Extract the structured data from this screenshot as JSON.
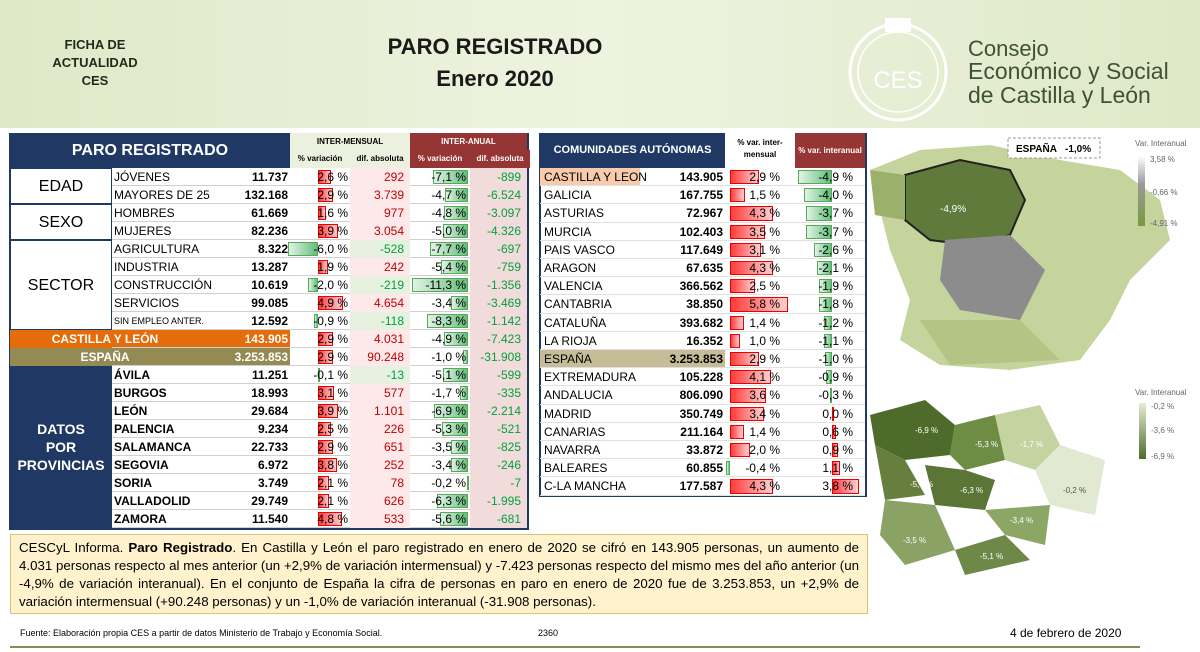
{
  "header": {
    "badge": [
      "FICHA DE",
      "ACTUALIDAD",
      "CES"
    ],
    "title": "PARO REGISTRADO",
    "subtitle": "Enero 2020",
    "logo_mark": "CES",
    "logo_lines": [
      "Consejo",
      "Económico y Social",
      "de Castilla y León"
    ]
  },
  "main_table": {
    "title": "PARO REGISTRADO",
    "groups": [
      "INTER-MENSUAL",
      "INTER-ANUAL"
    ],
    "columns": [
      "% variación",
      "dif. absoluta",
      "% variación",
      "dif. absoluta"
    ],
    "sections": [
      {
        "label": "EDAD",
        "rows": [
          [
            "JÓVENES",
            "11.737",
            "2,6 %",
            "292",
            "-7,1 %",
            "-899"
          ],
          [
            "MAYORES DE 25",
            "132.168",
            "2,9 %",
            "3.739",
            "-4,7 %",
            "-6.524"
          ]
        ]
      },
      {
        "label": "SEXO",
        "rows": [
          [
            "HOMBRES",
            "61.669",
            "1,6 %",
            "977",
            "-4,8 %",
            "-3.097"
          ],
          [
            "MUJERES",
            "82.236",
            "3,9 %",
            "3.054",
            "-5,0 %",
            "-4.326"
          ]
        ]
      },
      {
        "label": "SECTOR",
        "rows": [
          [
            "AGRICULTURA",
            "8.322",
            "-6,0 %",
            "-528",
            "-7,7 %",
            "-697"
          ],
          [
            "INDUSTRIA",
            "13.287",
            "1,9 %",
            "242",
            "-5,4 %",
            "-759"
          ],
          [
            "CONSTRUCCIÓN",
            "10.619",
            "-2,0 %",
            "-219",
            "-11,3 %",
            "-1.356"
          ],
          [
            "SERVICIOS",
            "99.085",
            "4,9 %",
            "4.654",
            "-3,4 %",
            "-3.469"
          ],
          [
            "SIN EMPLEO ANTER.",
            "12.592",
            "-0,9 %",
            "-118",
            "-8,3 %",
            "-1.142"
          ]
        ]
      }
    ],
    "totals": [
      [
        "CASTILLA Y LEÓN",
        "143.905",
        "2,9 %",
        "4.031",
        "-4,9 %",
        "-7.423"
      ],
      [
        "ESPAÑA",
        "3.253.853",
        "2,9 %",
        "90.248",
        "-1,0 %",
        "-31.908"
      ]
    ],
    "provinces": {
      "label": [
        "DATOS",
        "POR",
        "PROVINCIAS"
      ],
      "rows": [
        [
          "ÁVILA",
          "11.251",
          "-0,1 %",
          "-13",
          "-5,1 %",
          "-599"
        ],
        [
          "BURGOS",
          "18.993",
          "3,1 %",
          "577",
          "-1,7 %",
          "-335"
        ],
        [
          "LEÓN",
          "29.684",
          "3,9 %",
          "1.101",
          "-6,9 %",
          "-2.214"
        ],
        [
          "PALENCIA",
          "9.234",
          "2,5 %",
          "226",
          "-5,3 %",
          "-521"
        ],
        [
          "SALAMANCA",
          "22.733",
          "2,9 %",
          "651",
          "-3,5 %",
          "-825"
        ],
        [
          "SEGOVIA",
          "6.972",
          "3,8 %",
          "252",
          "-3,4 %",
          "-246"
        ],
        [
          "SORIA",
          "3.749",
          "2,1 %",
          "78",
          "-0,2 %",
          "-7"
        ],
        [
          "VALLADOLID",
          "29.749",
          "2,1 %",
          "626",
          "-6,3 %",
          "-1.995"
        ],
        [
          "ZAMORA",
          "11.540",
          "4,8 %",
          "533",
          "-5,6 %",
          "-681"
        ]
      ]
    }
  },
  "regions_table": {
    "columns": [
      "COMUNIDADES AUTÓNOMAS",
      "% var. inter-mensual",
      "% var. interanual"
    ],
    "rows": [
      [
        "CASTILLA Y LEON",
        "143.905",
        "2,9 %",
        "-4,9 %"
      ],
      [
        "GALICIA",
        "167.755",
        "1,5 %",
        "-4,0 %"
      ],
      [
        "ASTURIAS",
        "72.967",
        "4,3 %",
        "-3,7 %"
      ],
      [
        "MURCIA",
        "102.403",
        "3,5 %",
        "-3,7 %"
      ],
      [
        "PAIS VASCO",
        "117.649",
        "3,1 %",
        "-2,6 %"
      ],
      [
        "ARAGON",
        "67.635",
        "4,3 %",
        "-2,1 %"
      ],
      [
        "VALENCIA",
        "366.562",
        "2,5 %",
        "-1,9 %"
      ],
      [
        "CANTABRIA",
        "38.850",
        "5,8 %",
        "-1,8 %"
      ],
      [
        "CATALUÑA",
        "393.682",
        "1,4 %",
        "-1,2 %"
      ],
      [
        "LA RIOJA",
        "16.352",
        "1,0 %",
        "-1,1 %"
      ],
      [
        "ESPAÑA",
        "3.253.853",
        "2,9 %",
        "-1,0 %"
      ],
      [
        "EXTREMADURA",
        "105.228",
        "4,1 %",
        "-0,9 %"
      ],
      [
        "ANDALUCIA",
        "806.090",
        "3,6 %",
        "-0,3 %"
      ],
      [
        "MADRID",
        "350.749",
        "3,4 %",
        "0,0 %"
      ],
      [
        "CANARIAS",
        "211.164",
        "1,4 %",
        "0,6 %"
      ],
      [
        "NAVARRA",
        "33.872",
        "2,0 %",
        "0,9 %"
      ],
      [
        "BALEARES",
        "60.855",
        "-0,4 %",
        "1,1 %"
      ],
      [
        "C-LA MANCHA",
        "177.587",
        "4,3 %",
        "3,8 %"
      ]
    ]
  },
  "map_spain": {
    "badge": [
      "ESPAÑA",
      "-1,0%"
    ],
    "legend_title": "Var. Interanual",
    "legend": [
      "3,58 %",
      "-0,66 %",
      "-4,91 %"
    ],
    "label": "-4,9%"
  },
  "map_provinces": {
    "legend_title": "Var. Interanual",
    "legend": [
      "-0,2 %",
      "-3,6 %",
      "-6,9 %"
    ],
    "labels": [
      "-6,9 %",
      "-5,3 %",
      "-1,7 %",
      "-5,6 %",
      "-6,3 %",
      "-0,2 %",
      "-3,4 %",
      "-3,5 %",
      "-5,1 %"
    ]
  },
  "summary": {
    "lead": "CESCyL Informa. ",
    "bold": "Paro Registrado",
    "text": ". En Castilla y León el paro registrado en enero de 2020 se cifró en 143.905 personas, un aumento de 4.031 personas respecto al mes anterior (un +2,9% de variación intermensual) y -7.423 personas respecto del mismo mes del año anterior (un -4,9% de variación interanual). En el conjunto de España la cifra de personas en paro en enero de 2020 fue de 3.253.853, un +2,9% de variación intermensual (+90.248 personas) y un -1,0% de variación interanual (-31.908 personas)."
  },
  "footer": {
    "source": "Fuente: Elaboración propia CES a partir de datos Ministerio de Trabajo y Economía Social.",
    "code": "2360",
    "date": "4 de febrero de 2020"
  }
}
